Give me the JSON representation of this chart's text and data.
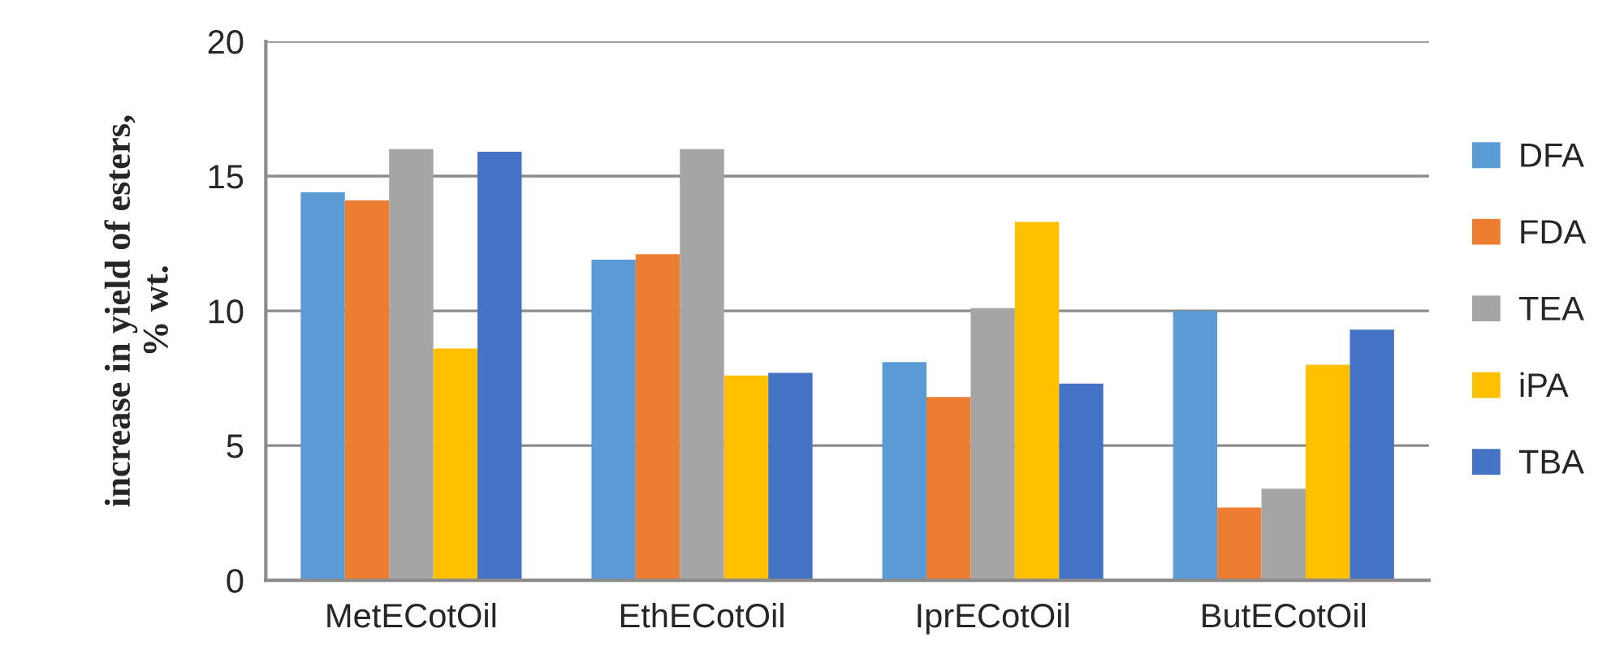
{
  "chart_data": {
    "type": "bar",
    "ylabel": "increase in yield of esters,\n% wt.",
    "categories": [
      "MetECotOil",
      "EthECotOil",
      "IprECotOil",
      "ButECotOil"
    ],
    "series": [
      {
        "name": "DFA",
        "color": "#5b9bd5",
        "values": [
          14.4,
          11.9,
          8.1,
          10.0
        ]
      },
      {
        "name": "FDA",
        "color": "#ed7d31",
        "values": [
          14.1,
          12.1,
          6.8,
          2.7
        ]
      },
      {
        "name": "TEA",
        "color": "#a5a5a5",
        "values": [
          16.0,
          16.0,
          10.1,
          3.4
        ]
      },
      {
        "name": "iPA",
        "color": "#ffc000",
        "values": [
          8.6,
          7.6,
          13.3,
          8.0
        ]
      },
      {
        "name": "TBA",
        "color": "#4472c4",
        "values": [
          15.9,
          7.7,
          7.3,
          9.3
        ]
      }
    ],
    "ylim": [
      0,
      20
    ],
    "yticks": [
      0,
      5,
      10,
      15,
      20
    ],
    "grid": "y",
    "legend": "right"
  }
}
